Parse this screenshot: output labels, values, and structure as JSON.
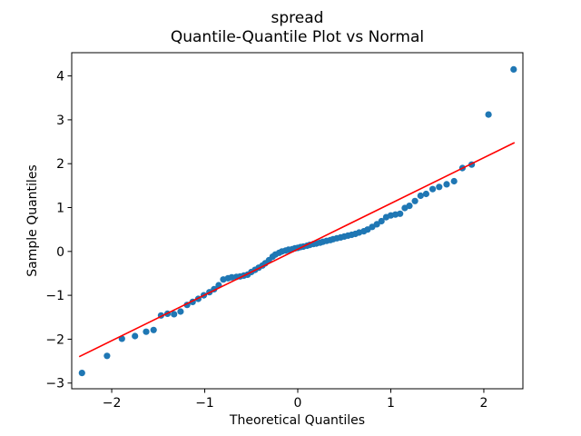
{
  "figure": {
    "title_line1": "spread",
    "title_line2": "Quantile-Quantile Plot vs Normal"
  },
  "chart_data": {
    "type": "scatter",
    "title": "spread\nQuantile-Quantile Plot vs Normal",
    "xlabel": "Theoretical Quantiles",
    "ylabel": "Sample Quantiles",
    "xlim": [
      -2.43,
      2.42
    ],
    "ylim": [
      -3.13,
      4.53
    ],
    "grid": false,
    "legend": "none",
    "x_ticks": [
      {
        "value": -2,
        "label": "−2"
      },
      {
        "value": -1,
        "label": "−1"
      },
      {
        "value": 0,
        "label": "0"
      },
      {
        "value": 1,
        "label": "1"
      },
      {
        "value": 2,
        "label": "2"
      }
    ],
    "y_ticks": [
      {
        "value": -3,
        "label": "−3"
      },
      {
        "value": -2,
        "label": "−2"
      },
      {
        "value": -1,
        "label": "−1"
      },
      {
        "value": 0,
        "label": "0"
      },
      {
        "value": 1,
        "label": "1"
      },
      {
        "value": 2,
        "label": "2"
      },
      {
        "value": 3,
        "label": "3"
      },
      {
        "value": 4,
        "label": "4"
      }
    ],
    "series": [
      {
        "name": "sample-vs-theoretical-quantiles",
        "type": "scatter",
        "marker": "circle",
        "color": "#1f77b4",
        "points": [
          [
            -2.32,
            -2.77
          ],
          [
            -2.05,
            -2.38
          ],
          [
            -1.89,
            -1.99
          ],
          [
            -1.75,
            -1.93
          ],
          [
            -1.63,
            -1.83
          ],
          [
            -1.55,
            -1.79
          ],
          [
            -1.47,
            -1.46
          ],
          [
            -1.4,
            -1.42
          ],
          [
            -1.33,
            -1.43
          ],
          [
            -1.26,
            -1.37
          ],
          [
            -1.19,
            -1.22
          ],
          [
            -1.13,
            -1.15
          ],
          [
            -1.07,
            -1.08
          ],
          [
            -1.01,
            -1.0
          ],
          [
            -0.95,
            -0.93
          ],
          [
            -0.9,
            -0.86
          ],
          [
            -0.85,
            -0.77
          ],
          [
            -0.8,
            -0.64
          ],
          [
            -0.75,
            -0.61
          ],
          [
            -0.71,
            -0.59
          ],
          [
            -0.66,
            -0.58
          ],
          [
            -0.62,
            -0.57
          ],
          [
            -0.58,
            -0.55
          ],
          [
            -0.54,
            -0.53
          ],
          [
            -0.5,
            -0.47
          ],
          [
            -0.46,
            -0.42
          ],
          [
            -0.42,
            -0.37
          ],
          [
            -0.38,
            -0.32
          ],
          [
            -0.35,
            -0.27
          ],
          [
            -0.31,
            -0.2
          ],
          [
            -0.27,
            -0.12
          ],
          [
            -0.24,
            -0.07
          ],
          [
            -0.2,
            -0.03
          ],
          [
            -0.17,
            0.0
          ],
          [
            -0.13,
            0.02
          ],
          [
            -0.1,
            0.04
          ],
          [
            -0.06,
            0.05
          ],
          [
            -0.03,
            0.07
          ],
          [
            0.0,
            0.08
          ],
          [
            0.03,
            0.1
          ],
          [
            0.06,
            0.11
          ],
          [
            0.1,
            0.13
          ],
          [
            0.13,
            0.15
          ],
          [
            0.17,
            0.17
          ],
          [
            0.2,
            0.18
          ],
          [
            0.24,
            0.2
          ],
          [
            0.27,
            0.22
          ],
          [
            0.31,
            0.24
          ],
          [
            0.35,
            0.26
          ],
          [
            0.38,
            0.28
          ],
          [
            0.42,
            0.3
          ],
          [
            0.46,
            0.32
          ],
          [
            0.5,
            0.34
          ],
          [
            0.54,
            0.36
          ],
          [
            0.58,
            0.38
          ],
          [
            0.62,
            0.4
          ],
          [
            0.66,
            0.43
          ],
          [
            0.71,
            0.46
          ],
          [
            0.75,
            0.5
          ],
          [
            0.8,
            0.56
          ],
          [
            0.85,
            0.62
          ],
          [
            0.9,
            0.69
          ],
          [
            0.95,
            0.78
          ],
          [
            1.0,
            0.82
          ],
          [
            1.05,
            0.84
          ],
          [
            1.1,
            0.86
          ],
          [
            1.15,
            0.99
          ],
          [
            1.2,
            1.04
          ],
          [
            1.26,
            1.15
          ],
          [
            1.32,
            1.27
          ],
          [
            1.38,
            1.31
          ],
          [
            1.45,
            1.42
          ],
          [
            1.52,
            1.47
          ],
          [
            1.6,
            1.53
          ],
          [
            1.68,
            1.6
          ],
          [
            1.77,
            1.9
          ],
          [
            1.87,
            1.98
          ],
          [
            2.05,
            3.12
          ],
          [
            2.32,
            4.15
          ]
        ]
      },
      {
        "name": "normal-reference-line",
        "type": "line",
        "color": "#ff0000",
        "points": [
          [
            -2.35,
            -2.4
          ],
          [
            2.33,
            2.48
          ]
        ]
      }
    ]
  }
}
